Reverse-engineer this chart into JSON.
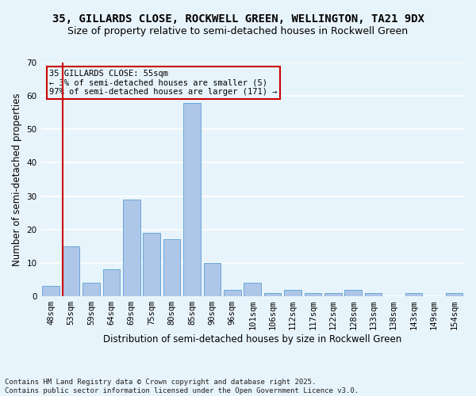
{
  "title1": "35, GILLARDS CLOSE, ROCKWELL GREEN, WELLINGTON, TA21 9DX",
  "title2": "Size of property relative to semi-detached houses in Rockwell Green",
  "xlabel": "Distribution of semi-detached houses by size in Rockwell Green",
  "ylabel": "Number of semi-detached properties",
  "footnote1": "Contains HM Land Registry data © Crown copyright and database right 2025.",
  "footnote2": "Contains public sector information licensed under the Open Government Licence v3.0.",
  "annotation_title": "35 GILLARDS CLOSE: 55sqm",
  "annotation_line2": "← 3% of semi-detached houses are smaller (5)",
  "annotation_line3": "97% of semi-detached houses are larger (171) →",
  "bar_labels": [
    "48sqm",
    "53sqm",
    "59sqm",
    "64sqm",
    "69sqm",
    "75sqm",
    "80sqm",
    "85sqm",
    "90sqm",
    "96sqm",
    "101sqm",
    "106sqm",
    "112sqm",
    "117sqm",
    "122sqm",
    "128sqm",
    "133sqm",
    "138sqm",
    "143sqm",
    "149sqm",
    "154sqm"
  ],
  "bar_values": [
    3,
    15,
    4,
    8,
    29,
    19,
    17,
    58,
    10,
    2,
    4,
    1,
    2,
    1,
    1,
    2,
    1,
    0,
    1,
    0,
    1
  ],
  "bar_color": "#aec6e8",
  "bar_edge_color": "#5a9fd4",
  "vline_x_index": 1,
  "ylim": [
    0,
    70
  ],
  "yticks": [
    0,
    10,
    20,
    30,
    40,
    50,
    60,
    70
  ],
  "bg_color": "#e8f4fb",
  "grid_color": "#ffffff",
  "vline_color": "#cc0000",
  "box_edge_color": "#cc0000",
  "title_fontsize": 10,
  "subtitle_fontsize": 9,
  "axis_label_fontsize": 8.5,
  "tick_fontsize": 7.5,
  "annotation_fontsize": 7.5,
  "footnote_fontsize": 6.5
}
